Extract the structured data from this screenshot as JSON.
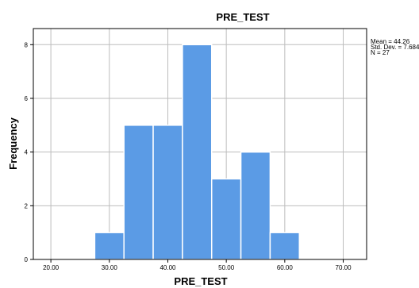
{
  "chart_data": {
    "type": "bar",
    "title": "PRE_TEST",
    "xlabel": "PRE_TEST",
    "ylabel": "Frequency",
    "xlim": [
      17,
      74
    ],
    "ylim": [
      0,
      8.6
    ],
    "grid": true,
    "bar_color": "#5b9be5",
    "x_ticks": [
      "20.00",
      "30.00",
      "40.00",
      "50.00",
      "60.00",
      "70.00"
    ],
    "x_tick_values": [
      20,
      30,
      40,
      50,
      60,
      70
    ],
    "y_ticks": [
      0,
      2,
      4,
      6,
      8
    ],
    "bins": [
      {
        "x0": 27.5,
        "x1": 32.5,
        "value": 1
      },
      {
        "x0": 32.5,
        "x1": 37.5,
        "value": 5
      },
      {
        "x0": 37.5,
        "x1": 42.5,
        "value": 5
      },
      {
        "x0": 42.5,
        "x1": 47.5,
        "value": 8
      },
      {
        "x0": 47.5,
        "x1": 52.5,
        "value": 3
      },
      {
        "x0": 52.5,
        "x1": 57.5,
        "value": 4
      },
      {
        "x0": 57.5,
        "x1": 62.5,
        "value": 1
      }
    ],
    "stats": [
      "Mean = 44.26",
      "Std. Dev. = 7.684",
      "N = 27"
    ]
  }
}
